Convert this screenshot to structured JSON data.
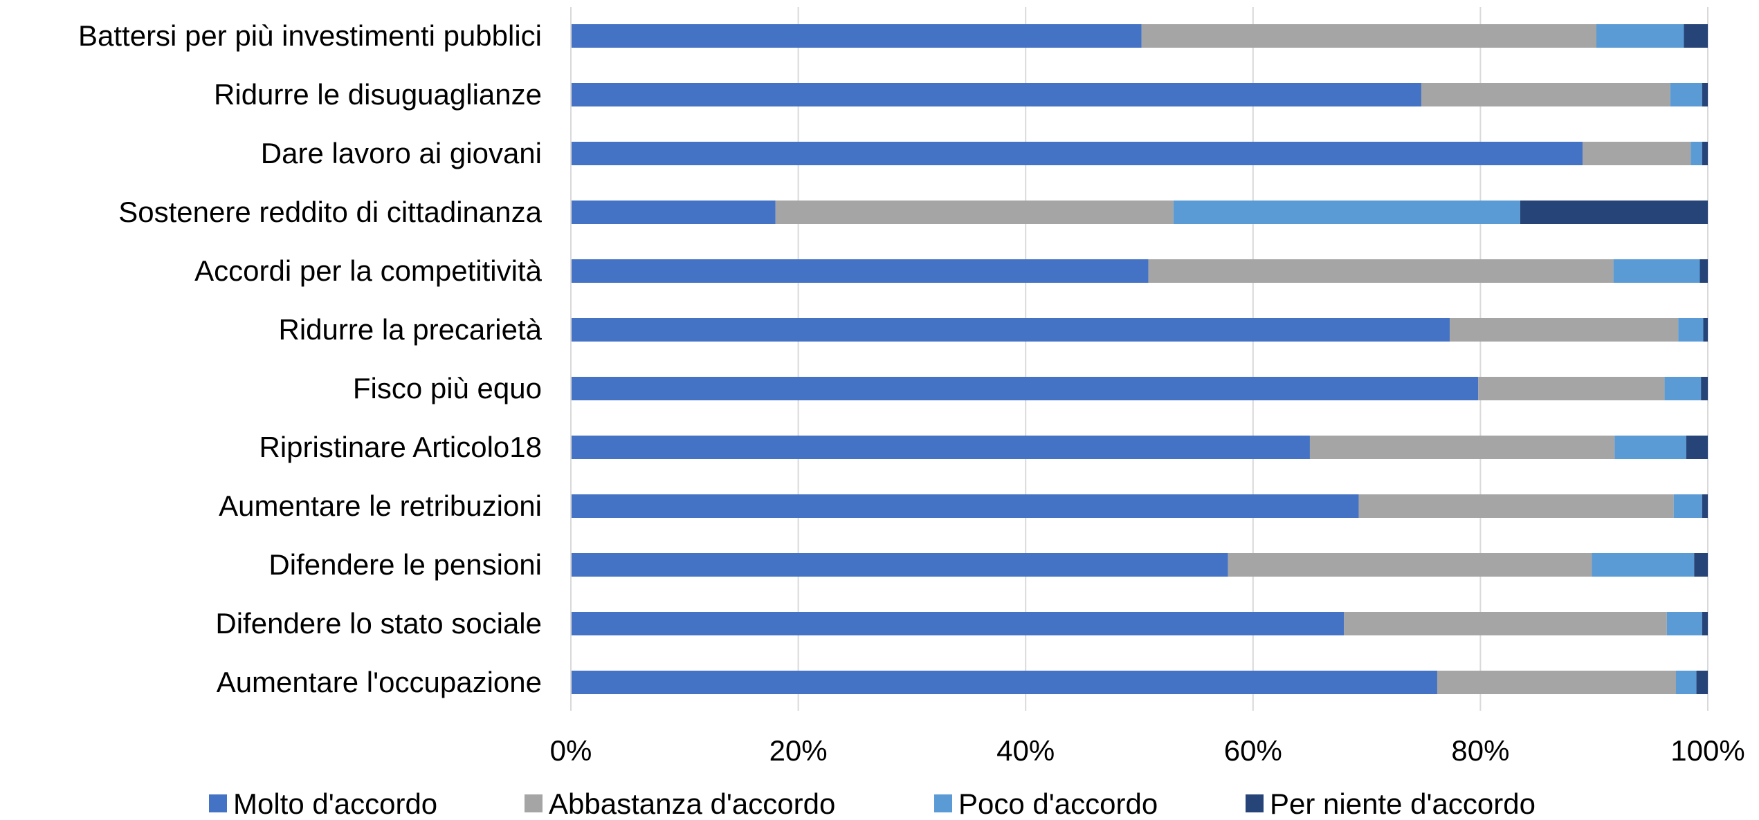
{
  "chart_data": {
    "type": "bar",
    "orientation": "horizontal",
    "stacked": true,
    "title": "",
    "xlabel": "",
    "ylabel": "",
    "xlim": [
      0,
      100
    ],
    "x_ticks": [
      "0%",
      "20%",
      "40%",
      "60%",
      "80%",
      "100%"
    ],
    "grid": "vertical",
    "legend_position": "bottom",
    "categories": [
      "Battersi per più investimenti pubblici",
      "Ridurre le disuguaglianze",
      "Dare lavoro ai giovani",
      "Sostenere reddito di cittadinanza",
      "Accordi per la competitività",
      "Ridurre la precarietà",
      "Fisco più equo",
      "Ripristinare Articolo18",
      "Aumentare le retribuzioni",
      "Difendere le pensioni",
      "Difendere lo stato sociale",
      "Aumentare l'occupazione"
    ],
    "series": [
      {
        "name": "Molto d'accordo",
        "color": "#4472C4",
        "values": [
          50.2,
          74.8,
          89.0,
          18.0,
          50.8,
          77.3,
          79.8,
          65.0,
          69.3,
          57.8,
          68.0,
          76.2
        ]
      },
      {
        "name": "Abbastanza d'accordo",
        "color": "#A5A5A5",
        "values": [
          40.0,
          21.9,
          9.5,
          35.0,
          40.9,
          20.1,
          16.4,
          26.8,
          27.7,
          32.0,
          28.4,
          21.0
        ]
      },
      {
        "name": "Poco d'accordo",
        "color": "#5B9BD5",
        "values": [
          7.7,
          2.8,
          1.0,
          30.5,
          7.6,
          2.2,
          3.2,
          6.3,
          2.5,
          9.0,
          3.1,
          1.8
        ]
      },
      {
        "name": "Per niente d'accordo",
        "color": "#264478",
        "values": [
          2.1,
          0.5,
          0.5,
          16.5,
          0.7,
          0.4,
          0.6,
          1.9,
          0.5,
          1.2,
          0.5,
          1.0
        ]
      }
    ]
  }
}
